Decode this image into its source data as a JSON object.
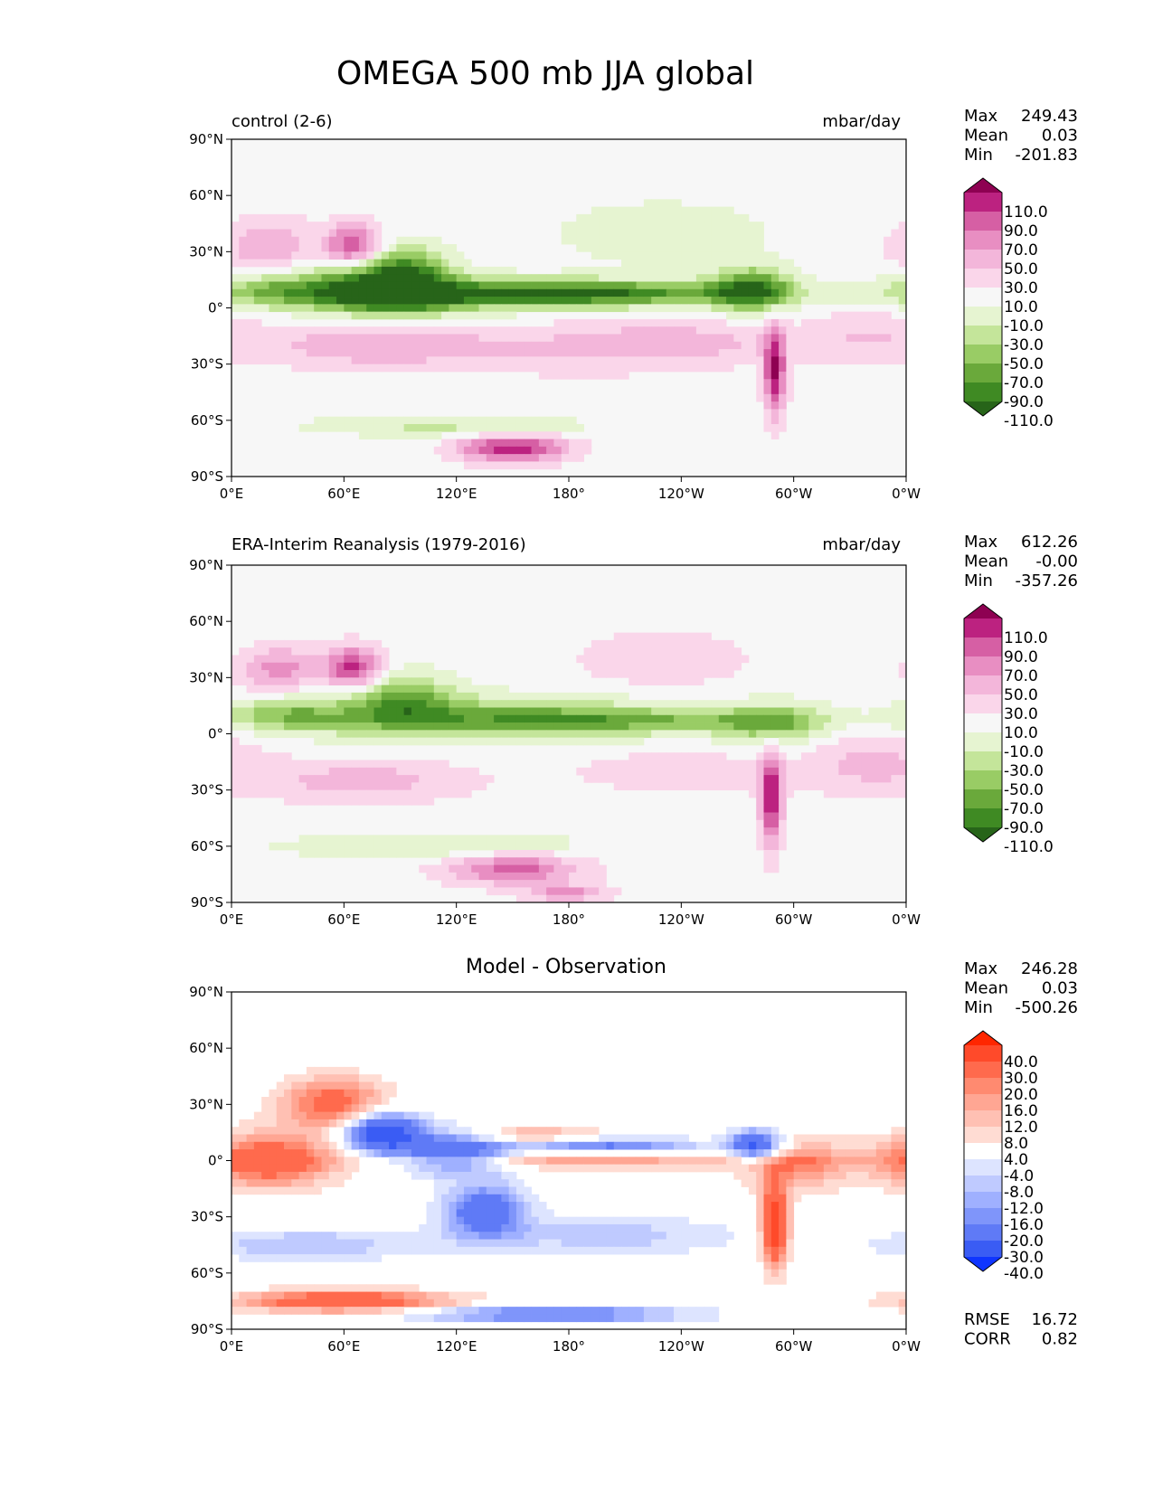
{
  "figure": {
    "title": "OMEGA 500 mb JJA global"
  },
  "chart_data": [
    {
      "type": "heatmap",
      "panel": "test",
      "title_left": "control (2-6)",
      "title_right": "mbar/day",
      "x_ticks": [
        "0°E",
        "60°E",
        "120°E",
        "180°",
        "120°W",
        "60°W",
        "0°W"
      ],
      "y_ticks": [
        "90°N",
        "60°N",
        "30°N",
        "0°",
        "30°S",
        "60°S",
        "90°S"
      ],
      "xlim": [
        0,
        360
      ],
      "ylim": [
        -90,
        90
      ],
      "stats": {
        "labels": [
          "Max",
          "Mean",
          "Min"
        ],
        "values": [
          "249.43",
          "0.03",
          "-201.83"
        ]
      },
      "colorbar": {
        "labels": [
          "110.0",
          "90.0",
          "70.0",
          "50.0",
          "30.0",
          "10.0",
          "-10.0",
          "-30.0",
          "-50.0",
          "-70.0",
          "-90.0",
          "-110.0"
        ],
        "colors": [
          "#8e0152",
          "#bc2280",
          "#d65fa4",
          "#e88ec2",
          "#f3b6da",
          "#fad6ea",
          "#f7f7f7",
          "#e6f4d1",
          "#c4e59a",
          "#99cc65",
          "#6aa93b",
          "#3f8a23",
          "#276419"
        ]
      },
      "features": [
        {
          "lon": 130,
          "lat": 7,
          "v": -85,
          "sx": 80,
          "sy": 6
        },
        {
          "lon": 75,
          "lat": 12,
          "v": -95,
          "sx": 25,
          "sy": 10
        },
        {
          "lon": 95,
          "lat": 15,
          "v": -75,
          "sx": 15,
          "sy": 12
        },
        {
          "lon": 200,
          "lat": 8,
          "v": -60,
          "sx": 60,
          "sy": 4
        },
        {
          "lon": 278,
          "lat": 10,
          "v": -100,
          "sx": 15,
          "sy": 8
        },
        {
          "lon": 20,
          "lat": 10,
          "v": -45,
          "sx": 20,
          "sy": 6
        },
        {
          "lon": 115,
          "lat": -63,
          "v": -35,
          "sx": 50,
          "sy": 4
        },
        {
          "lon": 230,
          "lat": 40,
          "v": -25,
          "sx": 40,
          "sy": 12
        },
        {
          "lon": 65,
          "lat": 33,
          "v": 95,
          "sx": 10,
          "sy": 8
        },
        {
          "lon": 20,
          "lat": 33,
          "v": 50,
          "sx": 18,
          "sy": 10
        },
        {
          "lon": 75,
          "lat": -20,
          "v": 45,
          "sx": 40,
          "sy": 8
        },
        {
          "lon": 180,
          "lat": -22,
          "v": 25,
          "sx": 60,
          "sy": 10
        },
        {
          "lon": 150,
          "lat": -75,
          "v": 110,
          "sx": 20,
          "sy": 5
        },
        {
          "lon": 240,
          "lat": -18,
          "v": 30,
          "sx": 40,
          "sy": 8
        },
        {
          "lon": 290,
          "lat": -35,
          "v": 110,
          "sx": 4,
          "sy": 16
        },
        {
          "lon": 340,
          "lat": -15,
          "v": 28,
          "sx": 25,
          "sy": 10
        }
      ]
    },
    {
      "type": "heatmap",
      "panel": "reference",
      "title_left": "ERA-Interim Reanalysis (1979-2016)",
      "title_right": "mbar/day",
      "x_ticks": [
        "0°E",
        "60°E",
        "120°E",
        "180°",
        "120°W",
        "60°W",
        "0°W"
      ],
      "y_ticks": [
        "90°N",
        "60°N",
        "30°N",
        "0°",
        "30°S",
        "60°S",
        "90°S"
      ],
      "xlim": [
        0,
        360
      ],
      "ylim": [
        -90,
        90
      ],
      "stats": {
        "labels": [
          "Max",
          "Mean",
          "Min"
        ],
        "values": [
          "612.26",
          "-0.00",
          "-357.26"
        ]
      },
      "colorbar": {
        "labels": [
          "110.0",
          "90.0",
          "70.0",
          "50.0",
          "30.0",
          "10.0",
          "-10.0",
          "-30.0",
          "-50.0",
          "-70.0",
          "-90.0",
          "-110.0"
        ],
        "colors": [
          "#8e0152",
          "#bc2280",
          "#d65fa4",
          "#e88ec2",
          "#f3b6da",
          "#fad6ea",
          "#f7f7f7",
          "#e6f4d1",
          "#c4e59a",
          "#99cc65",
          "#6aa93b",
          "#3f8a23",
          "#276419"
        ]
      },
      "features": [
        {
          "lon": 140,
          "lat": 8,
          "v": -70,
          "sx": 70,
          "sy": 8
        },
        {
          "lon": 90,
          "lat": 18,
          "v": -70,
          "sx": 20,
          "sy": 10
        },
        {
          "lon": 30,
          "lat": 10,
          "v": -55,
          "sx": 22,
          "sy": 6
        },
        {
          "lon": 220,
          "lat": 7,
          "v": -45,
          "sx": 60,
          "sy": 4
        },
        {
          "lon": 290,
          "lat": 5,
          "v": -60,
          "sx": 20,
          "sy": 8
        },
        {
          "lon": 110,
          "lat": -60,
          "v": -30,
          "sx": 60,
          "sy": 5
        },
        {
          "lon": 65,
          "lat": 35,
          "v": 100,
          "sx": 10,
          "sy": 8
        },
        {
          "lon": 25,
          "lat": 35,
          "v": 60,
          "sx": 15,
          "sy": 8
        },
        {
          "lon": 70,
          "lat": -25,
          "v": 40,
          "sx": 40,
          "sy": 8
        },
        {
          "lon": 150,
          "lat": -72,
          "v": 80,
          "sx": 25,
          "sy": 6
        },
        {
          "lon": 288,
          "lat": -35,
          "v": 110,
          "sx": 4,
          "sy": 18
        },
        {
          "lon": 240,
          "lat": -20,
          "v": 25,
          "sx": 40,
          "sy": 8
        },
        {
          "lon": 340,
          "lat": -15,
          "v": 35,
          "sx": 25,
          "sy": 12
        },
        {
          "lon": 180,
          "lat": -85,
          "v": 60,
          "sx": 15,
          "sy": 3
        },
        {
          "lon": 230,
          "lat": 40,
          "v": 30,
          "sx": 30,
          "sy": 10
        }
      ]
    },
    {
      "type": "heatmap",
      "panel": "difference",
      "title_center": "Model - Observation",
      "x_ticks": [
        "0°E",
        "60°E",
        "120°E",
        "180°",
        "120°W",
        "60°W",
        "0°W"
      ],
      "y_ticks": [
        "90°N",
        "60°N",
        "30°N",
        "0°",
        "30°S",
        "60°S",
        "90°S"
      ],
      "xlim": [
        0,
        360
      ],
      "ylim": [
        -90,
        90
      ],
      "stats": {
        "labels": [
          "Max",
          "Mean",
          "Min"
        ],
        "values": [
          "246.28",
          "0.03",
          "-500.26"
        ]
      },
      "colorbar": {
        "labels": [
          "40.0",
          "30.0",
          "20.0",
          "16.0",
          "12.0",
          "8.0",
          "4.0",
          "-4.0",
          "-8.0",
          "-12.0",
          "-16.0",
          "-20.0",
          "-30.0",
          "-40.0"
        ],
        "colors": [
          "#ff2600",
          "#ff4a2a",
          "#ff6a4d",
          "#ff8a70",
          "#ffa693",
          "#ffc0b3",
          "#ffdcd3",
          "#ffffff",
          "#dde4ff",
          "#bfcaff",
          "#9fb0ff",
          "#7f95fa",
          "#5f7af6",
          "#3a5cf4",
          "#0f35ff"
        ]
      },
      "extra_stats": {
        "labels": [
          "RMSE",
          "CORR"
        ],
        "values": [
          "16.72",
          "0.82"
        ]
      },
      "features": [
        {
          "lon": 120,
          "lat": 5,
          "v": -30,
          "sx": 20,
          "sy": 8
        },
        {
          "lon": 80,
          "lat": 15,
          "v": -40,
          "sx": 15,
          "sy": 8
        },
        {
          "lon": 190,
          "lat": 8,
          "v": -25,
          "sx": 40,
          "sy": 3
        },
        {
          "lon": 280,
          "lat": 8,
          "v": -35,
          "sx": 10,
          "sy": 6
        },
        {
          "lon": 20,
          "lat": 0,
          "v": 28,
          "sx": 25,
          "sy": 10
        },
        {
          "lon": 190,
          "lat": 0,
          "v": 14,
          "sx": 80,
          "sy": 3
        },
        {
          "lon": 300,
          "lat": -2,
          "v": 18,
          "sx": 20,
          "sy": 10
        },
        {
          "lon": 290,
          "lat": -35,
          "v": 40,
          "sx": 5,
          "sy": 15
        },
        {
          "lon": 60,
          "lat": -75,
          "v": 30,
          "sx": 40,
          "sy": 4
        },
        {
          "lon": 170,
          "lat": -82,
          "v": -25,
          "sx": 50,
          "sy": 3
        },
        {
          "lon": 135,
          "lat": -27,
          "v": -28,
          "sx": 15,
          "sy": 10
        },
        {
          "lon": 55,
          "lat": 30,
          "v": 25,
          "sx": 20,
          "sy": 10
        },
        {
          "lon": 155,
          "lat": 12,
          "v": 16,
          "sx": 30,
          "sy": 5
        },
        {
          "lon": 200,
          "lat": -40,
          "v": -10,
          "sx": 50,
          "sy": 8
        },
        {
          "lon": 40,
          "lat": -45,
          "v": -12,
          "sx": 40,
          "sy": 6
        }
      ]
    }
  ]
}
